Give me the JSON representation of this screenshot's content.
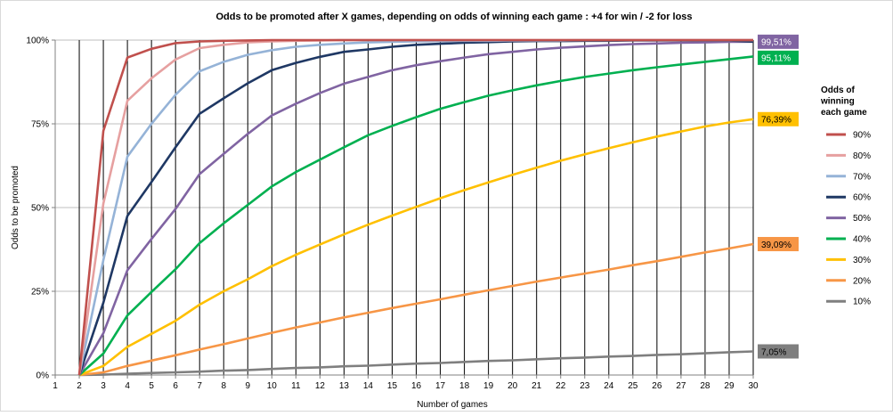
{
  "chart_data": {
    "type": "line",
    "title": "Odds to be promoted after X games, depending on odds of winning each game : +4 for win / -2 for loss",
    "xlabel": "Number of games",
    "ylabel": "Odds to be promoted",
    "x": [
      1,
      2,
      3,
      4,
      5,
      6,
      7,
      8,
      9,
      10,
      11,
      12,
      13,
      14,
      15,
      16,
      17,
      18,
      19,
      20,
      21,
      22,
      23,
      24,
      25,
      26,
      27,
      28,
      29,
      30
    ],
    "xlim": [
      1,
      30
    ],
    "ylim": [
      0,
      100
    ],
    "yticks": [
      "0%",
      "25%",
      "50%",
      "75%",
      "100%"
    ],
    "vertical_gridlines": true,
    "legend_title": "Odds of winning each game",
    "legend_position": "right",
    "series": [
      {
        "name": "90%",
        "color": "#C0504D",
        "values": [
          null,
          0,
          72.9,
          94.8,
          97.4,
          99.1,
          99.6,
          99.8,
          99.9,
          100,
          100,
          100,
          100,
          100,
          100,
          100,
          100,
          100,
          100,
          100,
          100,
          100,
          100,
          100,
          100,
          100,
          100,
          100,
          100,
          100
        ]
      },
      {
        "name": "80%",
        "color": "#E6A0A0",
        "values": [
          null,
          0,
          51.2,
          81.9,
          88.6,
          94.2,
          97.6,
          98.6,
          99.3,
          99.6,
          99.8,
          99.9,
          100,
          100,
          100,
          100,
          100,
          100,
          100,
          100,
          100,
          100,
          100,
          100,
          100,
          100,
          100,
          100,
          100,
          100
        ]
      },
      {
        "name": "70%",
        "color": "#95B3D7",
        "values": [
          null,
          0,
          34.3,
          65.2,
          75.0,
          83.7,
          90.7,
          93.5,
          95.6,
          97.0,
          98.0,
          98.6,
          99.0,
          99.3,
          99.5,
          99.6,
          99.7,
          99.8,
          99.8,
          99.9,
          99.9,
          99.9,
          100,
          100,
          100,
          100,
          100,
          100,
          100,
          100
        ]
      },
      {
        "name": "60%",
        "color": "#1F3864",
        "values": [
          null,
          0,
          21.6,
          47.5,
          57.6,
          68.0,
          78.0,
          82.6,
          87.1,
          91.0,
          93.2,
          95.0,
          96.5,
          97.2,
          98.0,
          98.6,
          98.9,
          99.2,
          99.4,
          99.6,
          99.7,
          99.7,
          99.8,
          99.8,
          99.9,
          99.9,
          99.9,
          99.9,
          99.9,
          99.51
        ]
      },
      {
        "name": "50%",
        "color": "#8064A2",
        "values": [
          null,
          0,
          12.5,
          31.3,
          40.6,
          49.6,
          60.0,
          66.0,
          72.0,
          77.5,
          81.0,
          84.2,
          87.0,
          89.0,
          91.0,
          92.5,
          93.7,
          94.8,
          95.8,
          96.5,
          97.2,
          97.7,
          98.1,
          98.5,
          98.8,
          99.0,
          99.2,
          99.3,
          99.5,
          99.51
        ]
      },
      {
        "name": "40%",
        "color": "#00B050",
        "values": [
          null,
          0,
          6.4,
          17.8,
          24.8,
          31.6,
          39.4,
          45.3,
          50.8,
          56.3,
          60.6,
          64.3,
          68.0,
          71.6,
          74.4,
          77.0,
          79.5,
          81.5,
          83.4,
          85.0,
          86.5,
          87.8,
          89.0,
          90.0,
          91.0,
          91.9,
          92.7,
          93.5,
          94.3,
          95.11
        ]
      },
      {
        "name": "30%",
        "color": "#FFC000",
        "values": [
          null,
          0,
          2.7,
          8.4,
          12.3,
          16.2,
          21.0,
          25.0,
          28.6,
          32.5,
          35.9,
          39.0,
          42.0,
          44.9,
          47.6,
          50.2,
          52.8,
          55.2,
          57.5,
          59.8,
          61.9,
          64.0,
          65.9,
          67.7,
          69.5,
          71.2,
          72.7,
          74.2,
          75.4,
          76.39
        ]
      },
      {
        "name": "20%",
        "color": "#F79646",
        "values": [
          null,
          0,
          0.8,
          2.7,
          4.3,
          5.9,
          7.6,
          9.2,
          10.9,
          12.6,
          14.2,
          15.7,
          17.2,
          18.6,
          20.0,
          21.3,
          22.6,
          24.0,
          25.3,
          26.6,
          27.9,
          29.1,
          30.3,
          31.5,
          32.8,
          34.0,
          35.3,
          36.6,
          37.8,
          39.09
        ]
      },
      {
        "name": "10%",
        "color": "#7F7F7F",
        "values": [
          null,
          0,
          0.1,
          0.4,
          0.6,
          0.8,
          1.0,
          1.3,
          1.5,
          1.8,
          2.1,
          2.3,
          2.6,
          2.8,
          3.1,
          3.4,
          3.6,
          3.9,
          4.2,
          4.4,
          4.7,
          5.0,
          5.2,
          5.5,
          5.7,
          6.0,
          6.2,
          6.5,
          6.8,
          7.05
        ]
      }
    ],
    "data_labels": [
      {
        "text": "99,51%",
        "series": "50%",
        "color": "#8064A2",
        "text_color": "#ffffff",
        "value": 99.51
      },
      {
        "text": "95,11%",
        "series": "40%",
        "color": "#00B050",
        "text_color": "#ffffff",
        "value": 95.11
      },
      {
        "text": "76,39%",
        "series": "30%",
        "color": "#FFC000",
        "text_color": "#000000",
        "value": 76.39
      },
      {
        "text": "39,09%",
        "series": "20%",
        "color": "#F79646",
        "text_color": "#000000",
        "value": 39.09
      },
      {
        "text": "7,05%",
        "series": "10%",
        "color": "#7F7F7F",
        "text_color": "#000000",
        "value": 7.05
      }
    ]
  }
}
